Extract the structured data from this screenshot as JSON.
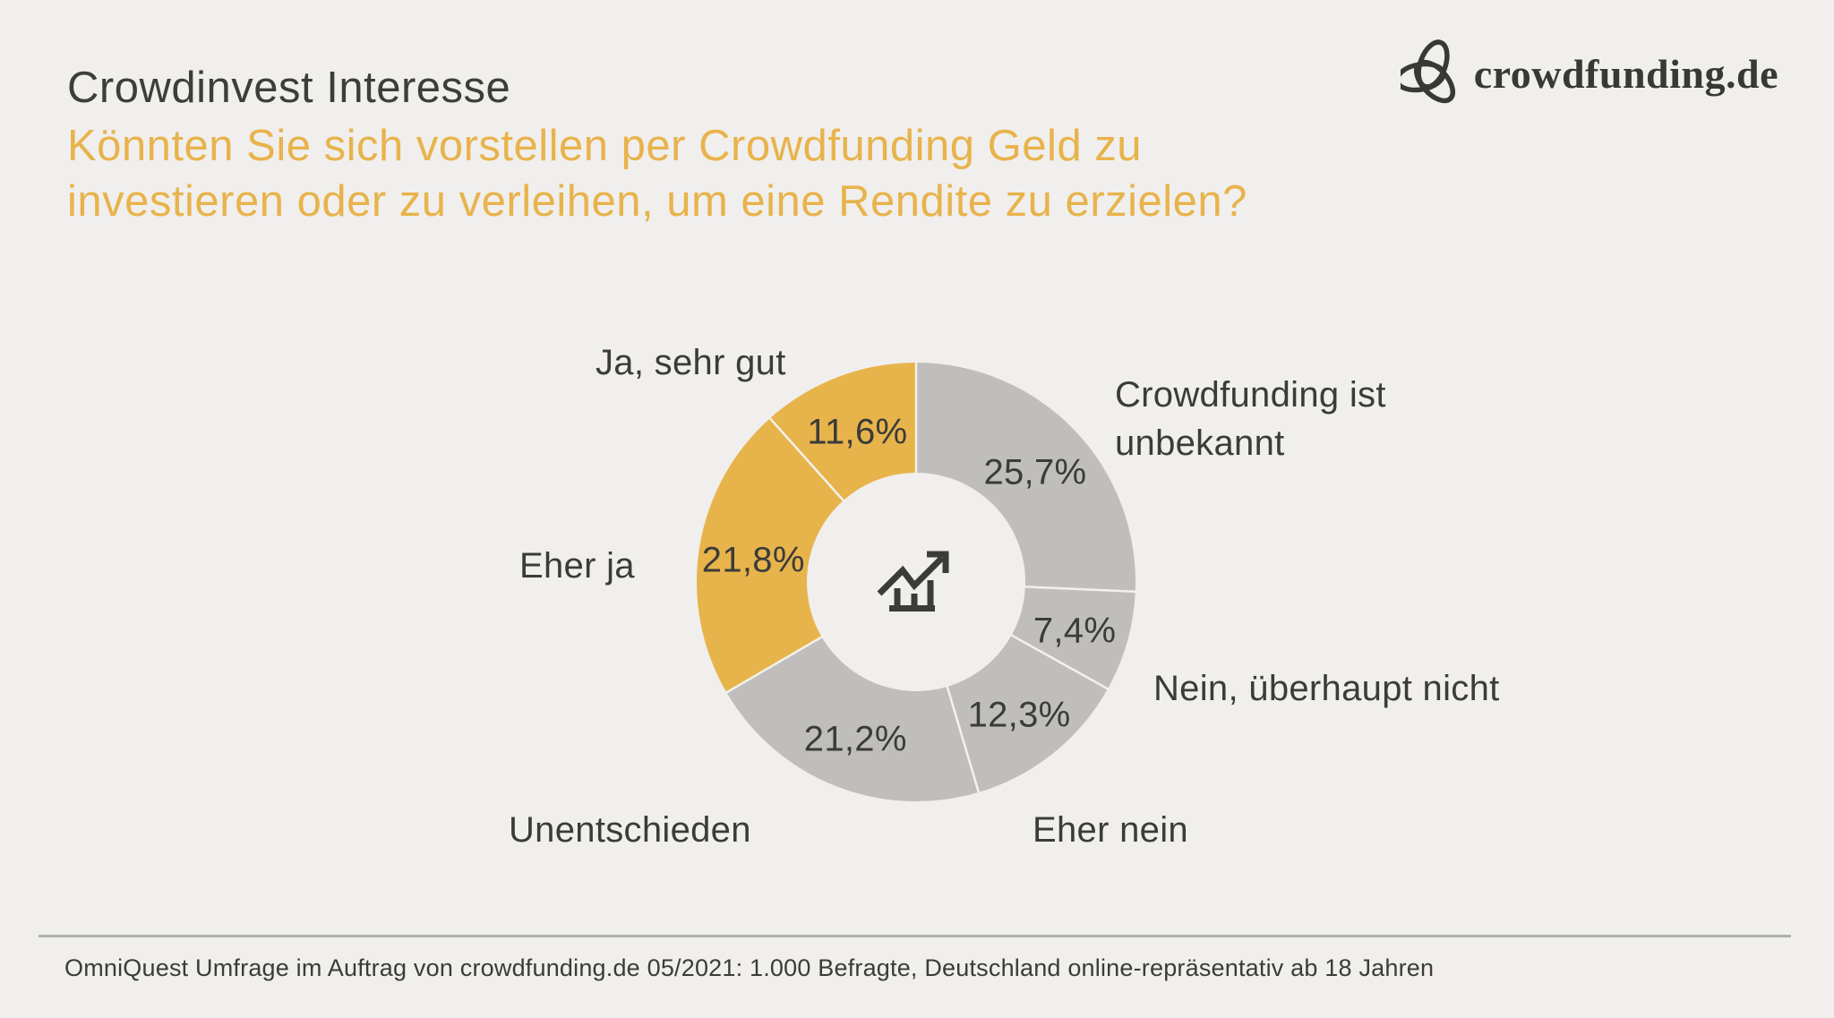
{
  "header": {
    "title": "Crowdinvest Interesse",
    "subtitle_line1": "Könnten Sie sich vorstellen per Crowdfunding Geld zu",
    "subtitle_line2": "investieren oder zu verleihen, um eine Rendite zu erzielen?"
  },
  "logo": {
    "text": "crowdfunding.de",
    "icon": "trefoil-knot-icon"
  },
  "chart_data": {
    "type": "pie",
    "title": "Crowdinvest Interesse",
    "donut": true,
    "start_angle_deg": 0,
    "direction": "clockwise",
    "center_icon": "trending-up-chart-icon",
    "legend_position": "labels-around-donut",
    "segments": [
      {
        "label": "Crowdfunding ist unbekannt",
        "value": 25.7,
        "display": "25,7%",
        "color": "#c0bebc"
      },
      {
        "label": "Nein, überhaupt nicht",
        "value": 7.4,
        "display": "7,4%",
        "color": "#c0bebc"
      },
      {
        "label": "Eher nein",
        "value": 12.3,
        "display": "12,3%",
        "color": "#c0bebc"
      },
      {
        "label": "Unentschieden",
        "value": 21.2,
        "display": "21,2%",
        "color": "#c0bebc"
      },
      {
        "label": "Eher ja",
        "value": 21.8,
        "display": "21,8%",
        "color": "#e7b44b"
      },
      {
        "label": "Ja, sehr gut",
        "value": 11.6,
        "display": "11,6%",
        "color": "#e7b44b"
      }
    ]
  },
  "footer": {
    "source": "OmniQuest Umfrage im Auftrag von crowdfunding.de 05/2021: 1.000 Befragte, Deutschland online-repräsentativ ab 18 Jahren"
  },
  "colors": {
    "background": "#f0efed",
    "accent_gold": "#e7b44b",
    "segment_gray": "#c0bebc",
    "text_dark": "#3b3b39",
    "separator_line": "#f3f1ed",
    "footer_rule": "#b1b1ac"
  }
}
